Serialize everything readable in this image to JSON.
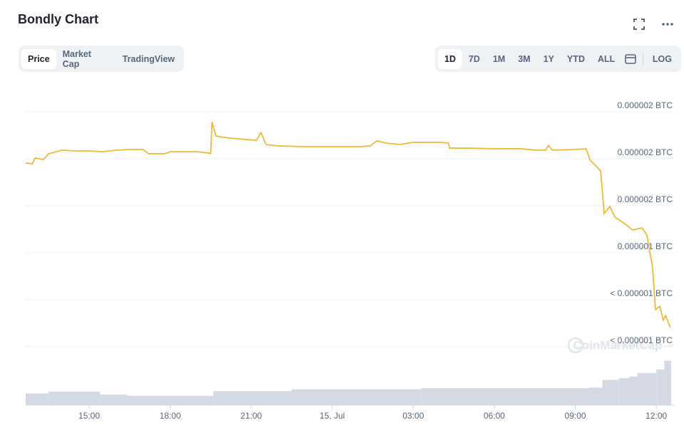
{
  "header": {
    "title": "Bondly Chart"
  },
  "tabs": [
    "Price",
    "Market Cap",
    "TradingView"
  ],
  "ranges": [
    "1D",
    "7D",
    "1M",
    "3M",
    "1Y",
    "YTD",
    "ALL"
  ],
  "log_button": "LOG",
  "watermark": "CoinMarketCap",
  "chart_data": {
    "type": "line",
    "color": "#f0b93b",
    "x": [
      12.65,
      12.9,
      13.0,
      13.3,
      13.5,
      14.0,
      14.5,
      15.0,
      15.5,
      16.0,
      16.5,
      17.0,
      17.2,
      17.8,
      18.0,
      18.5,
      19.0,
      19.45,
      19.5,
      19.55,
      19.7,
      20.2,
      20.8,
      21.2,
      21.3,
      21.36,
      21.55,
      22.0,
      23.0,
      24.0,
      25.0,
      25.4,
      25.65,
      26.0,
      26.5,
      27.0,
      28.0,
      28.3,
      28.35,
      29.0,
      30.0,
      31.0,
      31.5,
      31.9,
      32.0,
      32.15,
      33.0,
      33.4,
      33.55,
      33.94,
      34.07,
      34.28,
      34.47,
      34.86,
      35.12,
      35.47,
      35.65,
      35.86,
      35.97,
      36.13,
      36.26,
      36.34,
      36.52
    ],
    "values": [
      1.773e-06,
      1.768e-06,
      1.805e-06,
      1.795e-06,
      1.832e-06,
      1.855e-06,
      1.85e-06,
      1.85e-06,
      1.845e-06,
      1.855e-06,
      1.859e-06,
      1.859e-06,
      1.832e-06,
      1.832e-06,
      1.845e-06,
      1.845e-06,
      1.845e-06,
      1.836e-06,
      1.832e-06,
      2.032e-06,
      1.945e-06,
      1.932e-06,
      1.923e-06,
      1.918e-06,
      1.95e-06,
      1.968e-06,
      1.891e-06,
      1.882e-06,
      1.877e-06,
      1.877e-06,
      1.877e-06,
      1.882e-06,
      1.914e-06,
      1.9e-06,
      1.891e-06,
      1.905e-06,
      1.905e-06,
      1.9e-06,
      1.868e-06,
      1.868e-06,
      1.864e-06,
      1.864e-06,
      1.855e-06,
      1.855e-06,
      1.886e-06,
      1.855e-06,
      1.859e-06,
      1.864e-06,
      1.791e-06,
      1.723e-06,
      1.45e-06,
      1.495e-06,
      1.427e-06,
      1.382e-06,
      1.345e-06,
      1.359e-06,
      1.314e-06,
      1.109e-06,
      8.36e-07,
      8.59e-07,
      7.68e-07,
      8e-07,
      7.23e-07
    ],
    "xlim": [
      12.65,
      36.55
    ],
    "xticks": [
      {
        "value": 15,
        "label": "15:00"
      },
      {
        "value": 18,
        "label": "18:00"
      },
      {
        "value": 21,
        "label": "21:00"
      },
      {
        "value": 24,
        "label": "15. Jul"
      },
      {
        "value": 27,
        "label": "03:00"
      },
      {
        "value": 30,
        "label": "06:00"
      },
      {
        "value": 33,
        "label": "09:00"
      },
      {
        "value": 36,
        "label": "12:00"
      }
    ],
    "ylim": [
      6e-07,
      2.1e-06
    ],
    "yticks": [
      {
        "value": 2.1e-06,
        "label": "0.000002 BTC"
      },
      {
        "value": 1.8e-06,
        "label": "0.000002 BTC"
      },
      {
        "value": 1.5e-06,
        "label": "0.000002 BTC"
      },
      {
        "value": 1.2e-06,
        "label": "0.000001 BTC"
      },
      {
        "value": 9e-07,
        "label": "< 0.000001 BTC"
      },
      {
        "value": 6e-07,
        "label": "< 0.000001 BTC"
      }
    ],
    "grid": true,
    "volume": {
      "color": "#d5d9e4",
      "x": [
        12.65,
        13.5,
        15.4,
        16.4,
        19.6,
        22.5,
        27.3,
        33.5,
        34.0,
        34.6,
        35.0,
        35.3,
        36.0,
        36.3
      ],
      "values": [
        20,
        23,
        18,
        16,
        24,
        27,
        29,
        30,
        43,
        46,
        49,
        55,
        61,
        76
      ]
    },
    "y2lim": [
      0,
      100
    ]
  }
}
